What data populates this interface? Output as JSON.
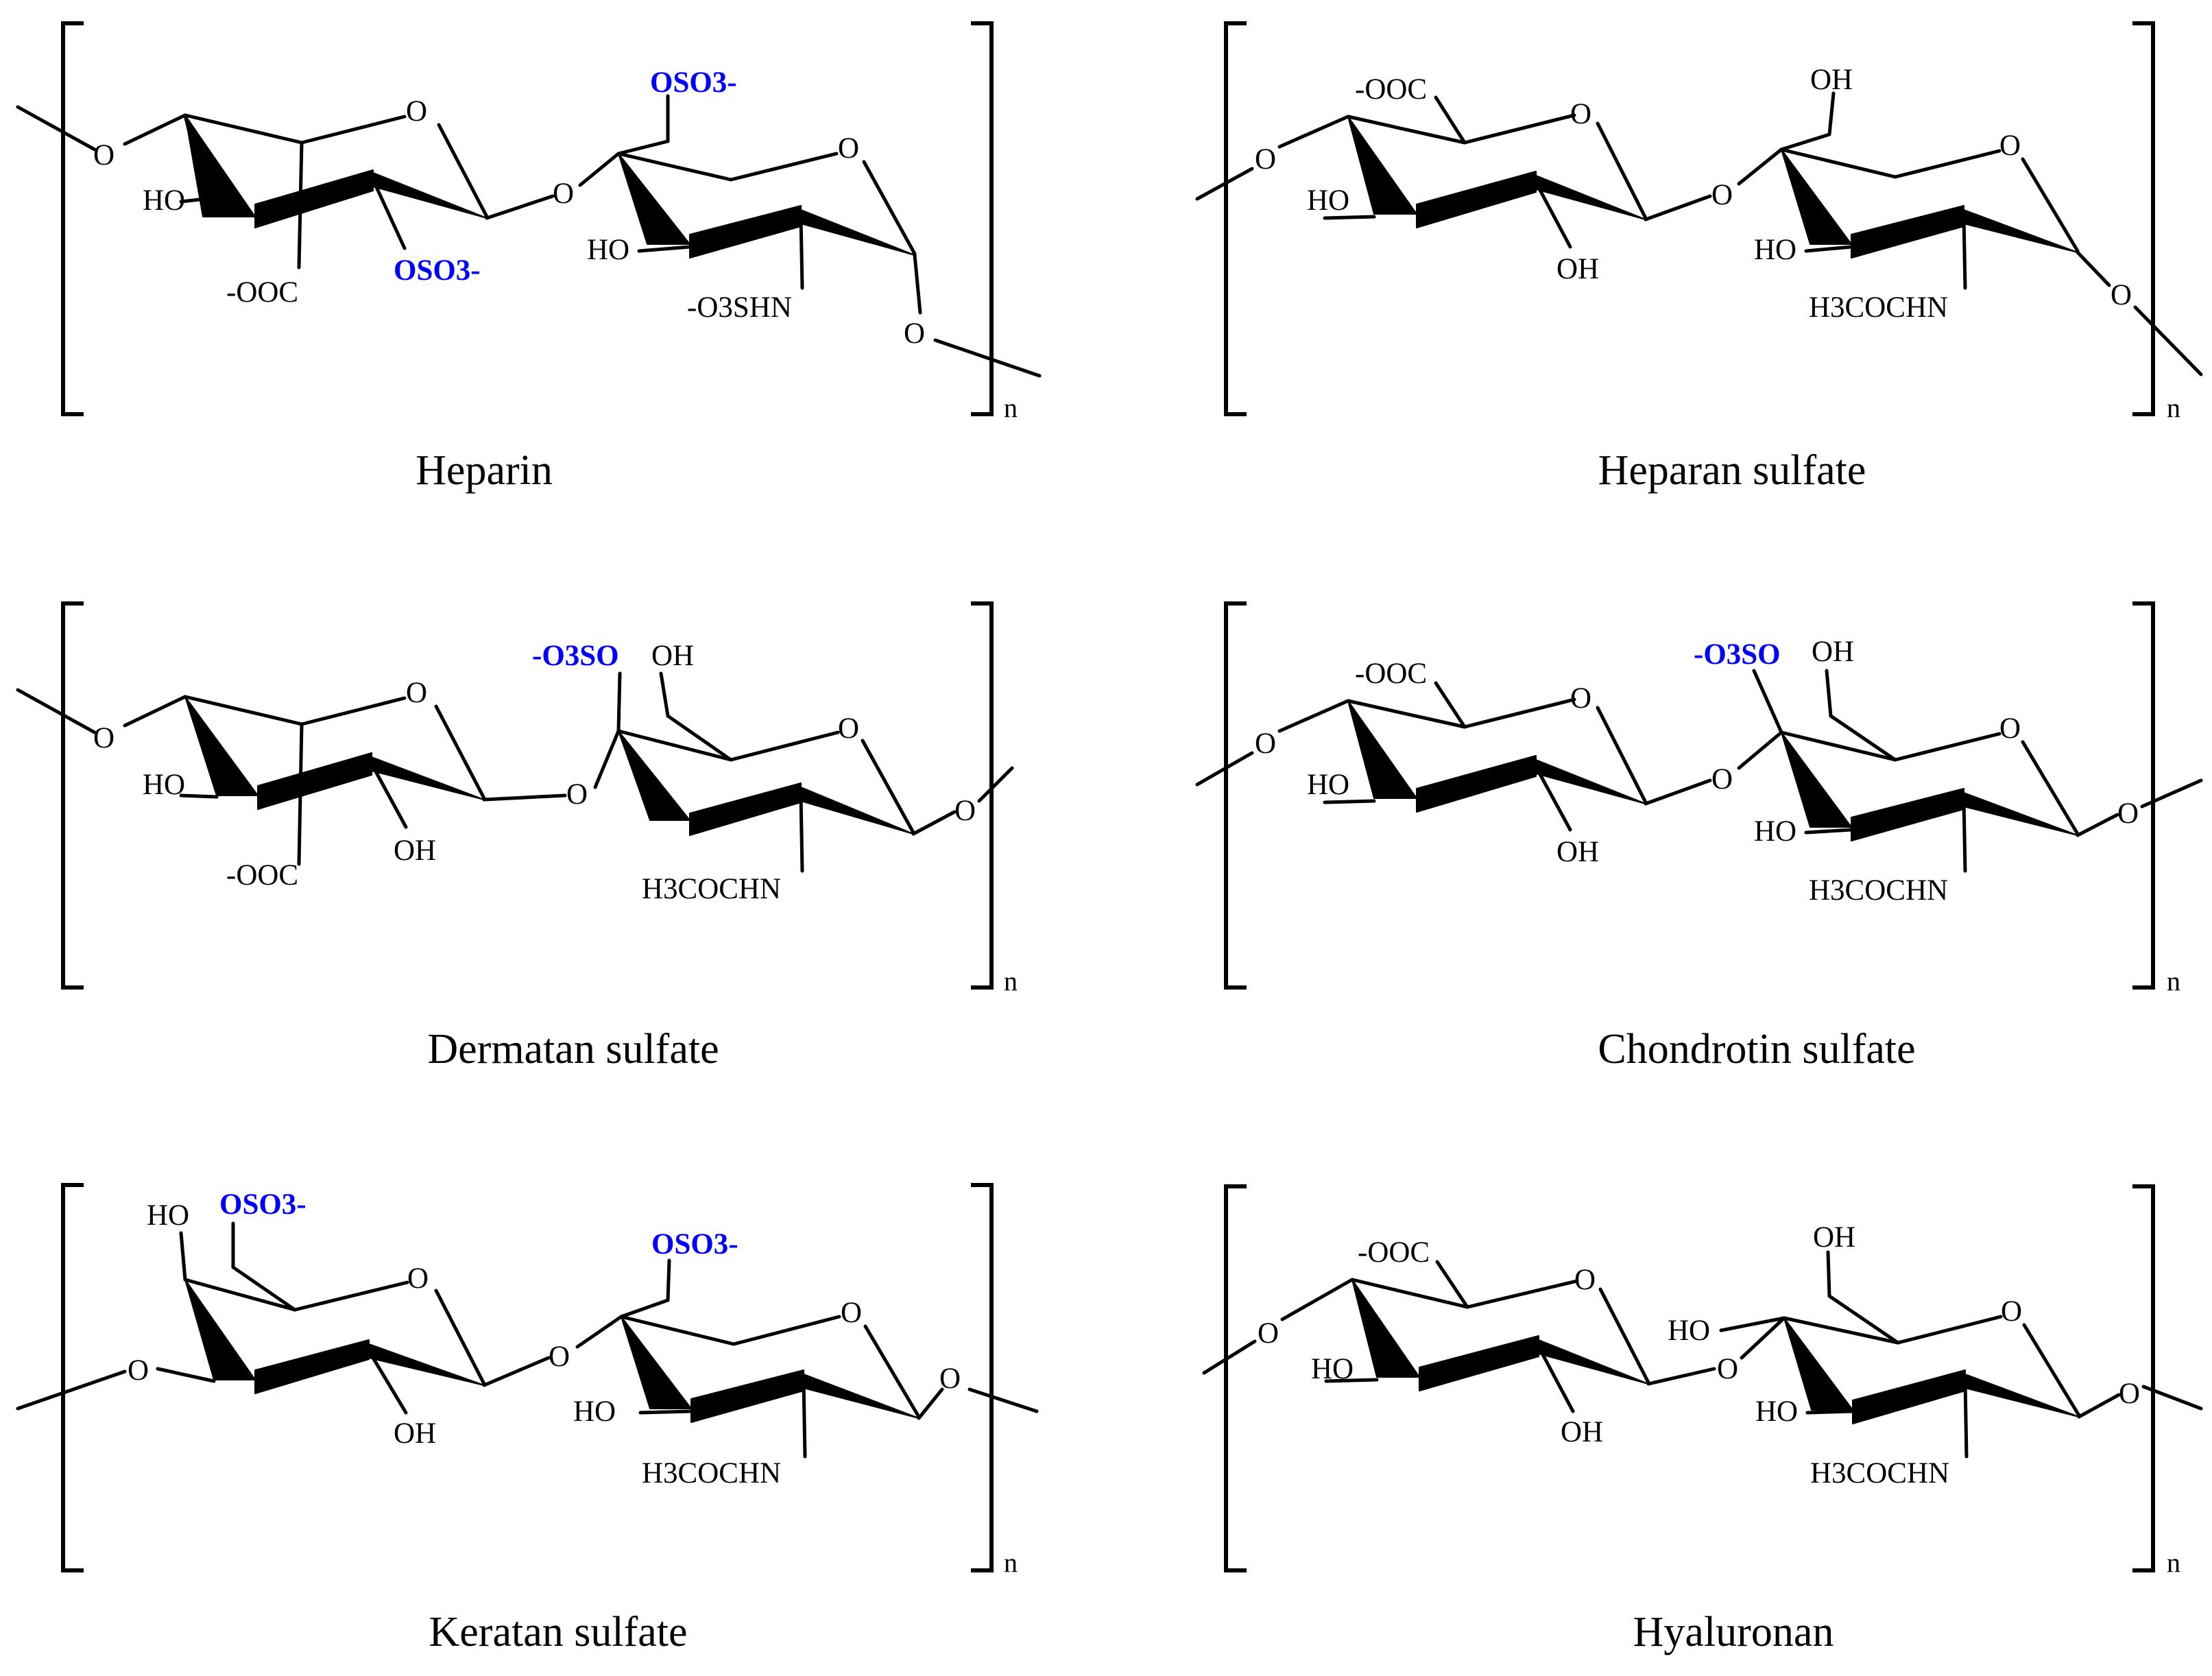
{
  "figure": {
    "accent_color": "#0000FF",
    "repeat_label": "n",
    "panels": [
      {
        "name": "Heparin",
        "labels": {
          "o_link_left": "O",
          "ring1_o": "O",
          "ring1_ho": "HO",
          "ring1_cooh": "-OOC",
          "ring1_sub": "OSO3-",
          "glyco_o": "O",
          "ring2_top": "OSO3-",
          "ring2_o": "O",
          "ring2_ho": "HO",
          "ring2_n": "-O3SHN",
          "o_link_right": "O"
        }
      },
      {
        "name": "Heparan sulfate",
        "labels": {
          "o_link_left": "O",
          "ring1_cooh": "-OOC",
          "ring1_o": "O",
          "ring1_ho": "HO",
          "ring1_sub": "OH",
          "glyco_o": "O",
          "ring2_top": "OH",
          "ring2_o": "O",
          "ring2_ho": "HO",
          "ring2_n": "H3COCHN",
          "o_link_right": "O"
        }
      },
      {
        "name": "Dermatan sulfate",
        "labels": {
          "o_link_left": "O",
          "ring1_o": "O",
          "ring1_ho": "HO",
          "ring1_cooh": "-OOC",
          "ring1_sub": "OH",
          "sulfate": "-O3SO",
          "ring2_top": "OH",
          "glyco_o": "O",
          "ring2_o": "O",
          "ring2_n": "H3COCHN",
          "o_link_right": "O"
        }
      },
      {
        "name": "Chondrotin sulfate",
        "labels": {
          "o_link_left": "O",
          "ring1_cooh": "-OOC",
          "ring1_o": "O",
          "ring1_ho": "HO",
          "ring1_sub": "OH",
          "sulfate": "-O3SO",
          "ring2_top": "OH",
          "glyco_o": "O",
          "ring2_o": "O",
          "ring2_ho": "HO",
          "ring2_n": "H3COCHN",
          "o_link_right": "O"
        }
      },
      {
        "name": "Keratan sulfate",
        "labels": {
          "ring1_top_ho": "HO",
          "ring1_top": "OSO3-",
          "ring1_o": "O",
          "o_link_left": "O",
          "ring1_sub": "OH",
          "glyco_o": "O",
          "ring2_top": "OSO3-",
          "ring2_o": "O",
          "ring2_ho": "HO",
          "ring2_n": "H3COCHN",
          "o_link_right": "O"
        }
      },
      {
        "name": "Hyaluronan",
        "labels": {
          "o_link_left": "O",
          "ring1_cooh": "-OOC",
          "ring1_o": "O",
          "ring1_ho": "HO",
          "ring1_sub": "OH",
          "ring2_top": "OH",
          "ring2_upper_ho": "HO",
          "glyco_o": "O",
          "ring2_o": "O",
          "ring2_ho": "HO",
          "ring2_n": "H3COCHN",
          "o_link_right": "O"
        }
      }
    ]
  }
}
